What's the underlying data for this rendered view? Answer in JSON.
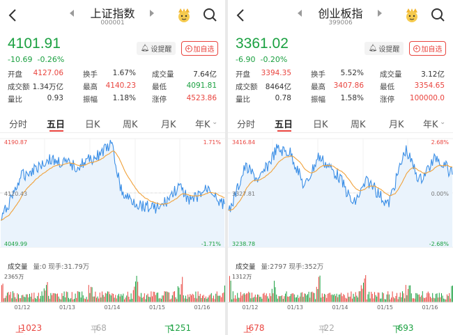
{
  "colors": {
    "up": "#e9443e",
    "down": "#1aa040",
    "price_line": "#3a8ee6",
    "avg_line": "#f0a13a"
  },
  "panels": [
    {
      "title": "上证指数",
      "code": "000001",
      "price": "4101.91",
      "change": "-10.69",
      "change_pct": "-0.26%",
      "remind_label": "设提醒",
      "fav_label": "加自选",
      "stats": [
        [
          {
            "l": "开盘",
            "v": "4127.06",
            "c": "red"
          },
          {
            "l": "换手",
            "v": "1.67%",
            "c": ""
          },
          {
            "l": "成交量",
            "v": "7.64亿",
            "c": ""
          }
        ],
        [
          {
            "l": "成交额",
            "v": "1.34万亿",
            "c": ""
          },
          {
            "l": "最高",
            "v": "4140.23",
            "c": "red"
          },
          {
            "l": "最低",
            "v": "4091.81",
            "c": "green"
          }
        ],
        [
          {
            "l": "量比",
            "v": "0.93",
            "c": ""
          },
          {
            "l": "振幅",
            "v": "1.18%",
            "c": ""
          },
          {
            "l": "涨停",
            "v": "4523.86",
            "c": "red"
          }
        ]
      ],
      "tabs": [
        "分时",
        "五日",
        "日K",
        "周K",
        "月K",
        "年K"
      ],
      "active_tab": 1,
      "chart": {
        "y_max": "4190.87",
        "y_mid": "4120.43",
        "y_min": "4049.99",
        "pct_max": "1.71%",
        "pct_min": "-1.71%",
        "pct_mid": ""
      },
      "volume": {
        "label": "成交量",
        "stat": "量:0 现手:31.79万",
        "max": "2365万"
      },
      "dates": [
        "01/12",
        "01/13",
        "01/14",
        "01/15",
        "01/16"
      ],
      "breadth": {
        "up_label": "上涨",
        "up": "1023家",
        "flat_label": "平盘",
        "flat": "68家",
        "down_label": "下跌",
        "down": "1251家"
      }
    },
    {
      "title": "创业板指",
      "code": "399006",
      "price": "3361.02",
      "change": "-6.90",
      "change_pct": "-0.20%",
      "remind_label": "设提醒",
      "fav_label": "加自选",
      "stats": [
        [
          {
            "l": "开盘",
            "v": "3394.35",
            "c": "red"
          },
          {
            "l": "换手",
            "v": "5.52%",
            "c": ""
          },
          {
            "l": "成交量",
            "v": "3.12亿",
            "c": ""
          }
        ],
        [
          {
            "l": "成交额",
            "v": "8464亿",
            "c": ""
          },
          {
            "l": "最高",
            "v": "3407.86",
            "c": "red"
          },
          {
            "l": "最低",
            "v": "3354.65",
            "c": "red"
          }
        ],
        [
          {
            "l": "量比",
            "v": "0.78",
            "c": ""
          },
          {
            "l": "振幅",
            "v": "1.58%",
            "c": ""
          },
          {
            "l": "涨停",
            "v": "100000.0",
            "c": "red"
          }
        ]
      ],
      "tabs": [
        "分时",
        "五日",
        "日K",
        "周K",
        "月K",
        "年K"
      ],
      "active_tab": 1,
      "chart": {
        "y_max": "3416.84",
        "y_mid": "3327.81",
        "y_min": "3238.78",
        "pct_max": "2.68%",
        "pct_min": "-2.68%",
        "pct_mid": "0.00%"
      },
      "volume": {
        "label": "成交量",
        "stat": "量:2797 现手:352万",
        "max": "1312万"
      },
      "dates": [
        "01/12",
        "01/13",
        "01/14",
        "01/15",
        "01/16"
      ],
      "breadth": {
        "up_label": "上涨",
        "up": "678家",
        "flat_label": "平盘",
        "flat": "22家",
        "down_label": "下跌",
        "down": "693家"
      }
    }
  ]
}
